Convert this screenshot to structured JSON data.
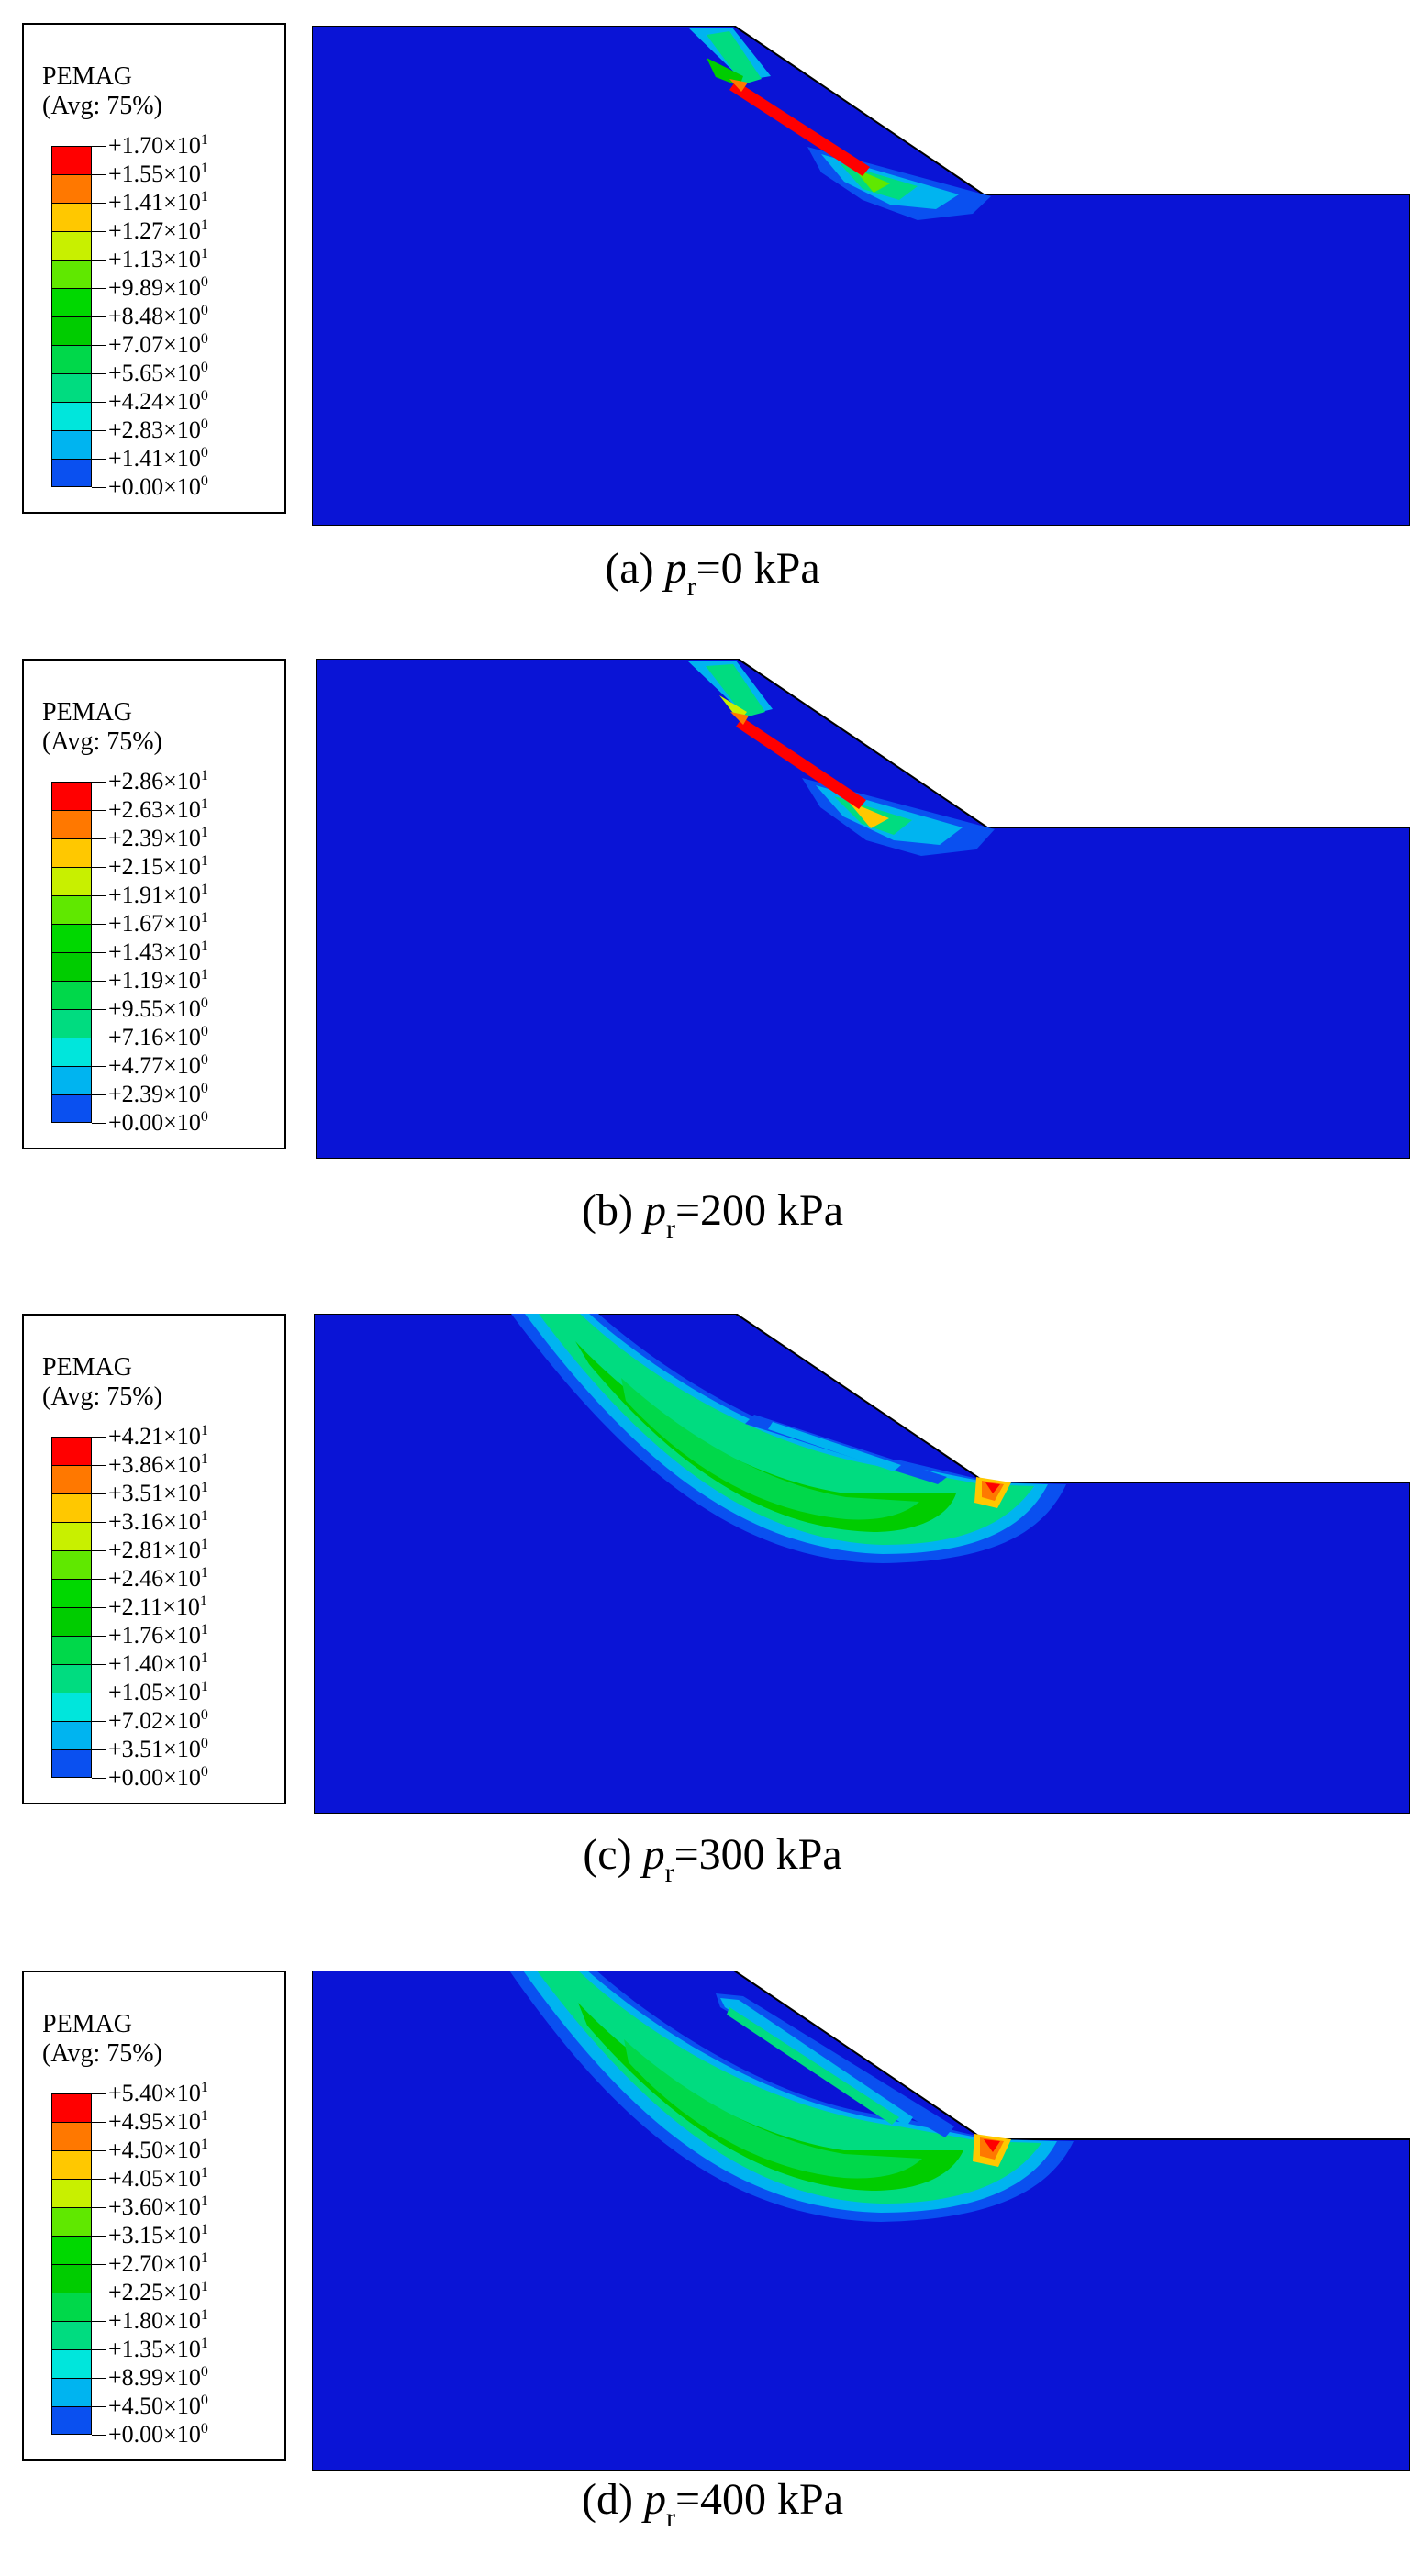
{
  "colors": {
    "background_blue": "#0a14d6",
    "scale": [
      "#0000ff",
      "#0a50f0",
      "#00b4f0",
      "#00e6dc",
      "#00dc80",
      "#00d84a",
      "#00cc00",
      "#00d800",
      "#60e800",
      "#c8f000",
      "#ffc800",
      "#ff7800",
      "#ff0000"
    ]
  },
  "panels": [
    {
      "id": "a",
      "legend": {
        "title": "PEMAG",
        "subtitle": "(Avg: 75%)",
        "ticks": [
          {
            "mant": "+1.70×10",
            "exp": "1"
          },
          {
            "mant": "+1.55×10",
            "exp": "1"
          },
          {
            "mant": "+1.41×10",
            "exp": "1"
          },
          {
            "mant": "+1.27×10",
            "exp": "1"
          },
          {
            "mant": "+1.13×10",
            "exp": "1"
          },
          {
            "mant": "+9.89×10",
            "exp": "0"
          },
          {
            "mant": "+8.48×10",
            "exp": "0"
          },
          {
            "mant": "+7.07×10",
            "exp": "0"
          },
          {
            "mant": "+5.65×10",
            "exp": "0"
          },
          {
            "mant": "+4.24×10",
            "exp": "0"
          },
          {
            "mant": "+2.83×10",
            "exp": "0"
          },
          {
            "mant": "+1.41×10",
            "exp": "0"
          },
          {
            "mant": "+0.00×10",
            "exp": "0"
          }
        ]
      },
      "caption": {
        "prefix": "(a) ",
        "symbol": "p",
        "sub": "r",
        "suffix": "=0 kPa"
      }
    },
    {
      "id": "b",
      "legend": {
        "title": "PEMAG",
        "subtitle": "(Avg: 75%)",
        "ticks": [
          {
            "mant": "+2.86×10",
            "exp": "1"
          },
          {
            "mant": "+2.63×10",
            "exp": "1"
          },
          {
            "mant": "+2.39×10",
            "exp": "1"
          },
          {
            "mant": "+2.15×10",
            "exp": "1"
          },
          {
            "mant": "+1.91×10",
            "exp": "1"
          },
          {
            "mant": "+1.67×10",
            "exp": "1"
          },
          {
            "mant": "+1.43×10",
            "exp": "1"
          },
          {
            "mant": "+1.19×10",
            "exp": "1"
          },
          {
            "mant": "+9.55×10",
            "exp": "0"
          },
          {
            "mant": "+7.16×10",
            "exp": "0"
          },
          {
            "mant": "+4.77×10",
            "exp": "0"
          },
          {
            "mant": "+2.39×10",
            "exp": "0"
          },
          {
            "mant": "+0.00×10",
            "exp": "0"
          }
        ]
      },
      "caption": {
        "prefix": "(b) ",
        "symbol": "p",
        "sub": "r",
        "suffix": "=200 kPa"
      }
    },
    {
      "id": "c",
      "legend": {
        "title": "PEMAG",
        "subtitle": "(Avg: 75%)",
        "ticks": [
          {
            "mant": "+4.21×10",
            "exp": "1"
          },
          {
            "mant": "+3.86×10",
            "exp": "1"
          },
          {
            "mant": "+3.51×10",
            "exp": "1"
          },
          {
            "mant": "+3.16×10",
            "exp": "1"
          },
          {
            "mant": "+2.81×10",
            "exp": "1"
          },
          {
            "mant": "+2.46×10",
            "exp": "1"
          },
          {
            "mant": "+2.11×10",
            "exp": "1"
          },
          {
            "mant": "+1.76×10",
            "exp": "1"
          },
          {
            "mant": "+1.40×10",
            "exp": "1"
          },
          {
            "mant": "+1.05×10",
            "exp": "1"
          },
          {
            "mant": "+7.02×10",
            "exp": "0"
          },
          {
            "mant": "+3.51×10",
            "exp": "0"
          },
          {
            "mant": "+0.00×10",
            "exp": "0"
          }
        ]
      },
      "caption": {
        "prefix": "(c) ",
        "symbol": "p",
        "sub": "r",
        "suffix": "=300 kPa"
      }
    },
    {
      "id": "d",
      "legend": {
        "title": "PEMAG",
        "subtitle": "(Avg: 75%)",
        "ticks": [
          {
            "mant": "+5.40×10",
            "exp": "1"
          },
          {
            "mant": "+4.95×10",
            "exp": "1"
          },
          {
            "mant": "+4.50×10",
            "exp": "1"
          },
          {
            "mant": "+4.05×10",
            "exp": "1"
          },
          {
            "mant": "+3.60×10",
            "exp": "1"
          },
          {
            "mant": "+3.15×10",
            "exp": "1"
          },
          {
            "mant": "+2.70×10",
            "exp": "1"
          },
          {
            "mant": "+2.25×10",
            "exp": "1"
          },
          {
            "mant": "+1.80×10",
            "exp": "1"
          },
          {
            "mant": "+1.35×10",
            "exp": "1"
          },
          {
            "mant": "+8.99×10",
            "exp": "0"
          },
          {
            "mant": "+4.50×10",
            "exp": "0"
          },
          {
            "mant": "+0.00×10",
            "exp": "0"
          }
        ]
      },
      "caption": {
        "prefix": "(d) ",
        "symbol": "p",
        "sub": "r",
        "suffix": "=400 kPa"
      }
    }
  ]
}
